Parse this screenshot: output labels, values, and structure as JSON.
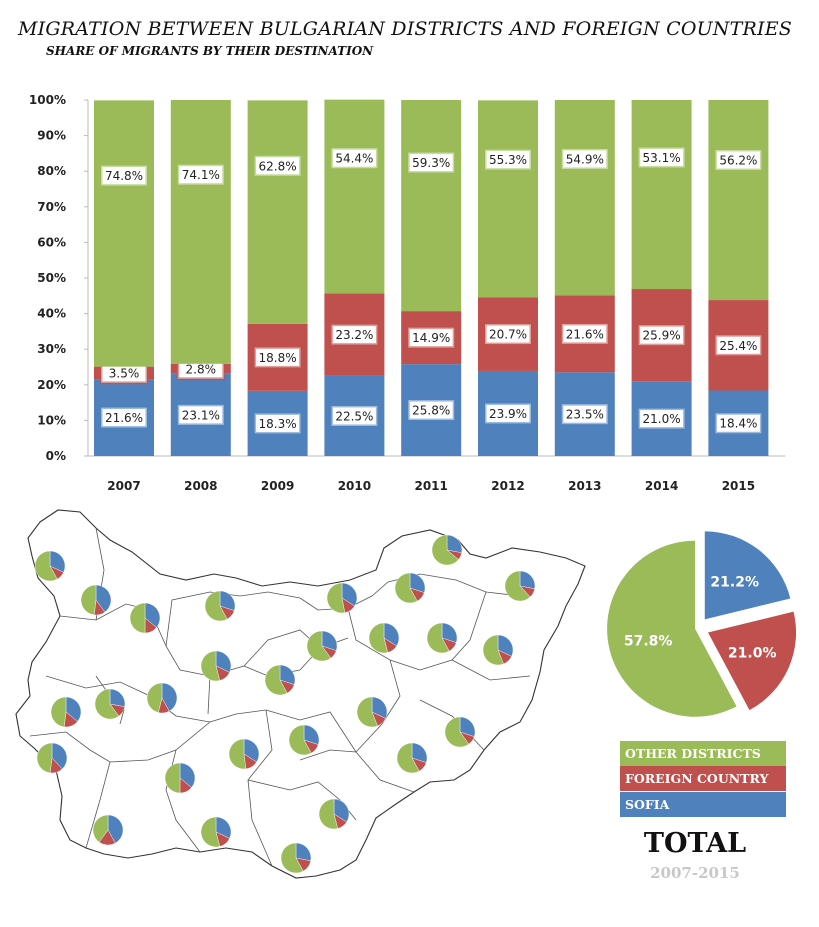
{
  "header": {
    "title": "MIGRATION BETWEEN BULGARIAN DISTRICTS AND FOREIGN COUNTRIES",
    "subtitle": "SHARE OF MIGRANTS BY THEIR DESTINATION"
  },
  "colors": {
    "other_districts": "#9bbb59",
    "foreign_country": "#c0504d",
    "sofia": "#4f81bd"
  },
  "chart_data": [
    {
      "type": "bar",
      "stacked": true,
      "categories": [
        "2007",
        "2008",
        "2009",
        "2010",
        "2011",
        "2012",
        "2013",
        "2014",
        "2015"
      ],
      "series": [
        {
          "name": "SOFIA",
          "values": [
            21.6,
            23.1,
            18.3,
            22.5,
            25.8,
            23.9,
            23.5,
            21.0,
            18.4
          ],
          "labels": [
            "21.6%",
            "23.1%",
            "18.3%",
            "22.5%",
            "25.8%",
            "23.9%",
            "23.5%",
            "21.0%",
            "18.4%"
          ]
        },
        {
          "name": "FOREIGN COUNTRY",
          "values": [
            3.5,
            2.8,
            18.8,
            23.2,
            14.9,
            20.7,
            21.6,
            25.9,
            25.4
          ],
          "labels": [
            "3.5%",
            "2.8%",
            "18.8%",
            "23.2%",
            "14.9%",
            "20.7%",
            "21.6%",
            "25.9%",
            "25.4%"
          ]
        },
        {
          "name": "OTHER DISTRICTS",
          "values": [
            74.8,
            74.1,
            62.8,
            54.4,
            59.3,
            55.3,
            54.9,
            53.1,
            56.2
          ],
          "labels": [
            "74.8%",
            "74.1%",
            "62.8%",
            "54.4%",
            "59.3%",
            "55.3%",
            "54.9%",
            "53.1%",
            "56.2%"
          ]
        }
      ],
      "yticks": [
        "0%",
        "10%",
        "20%",
        "30%",
        "40%",
        "50%",
        "60%",
        "70%",
        "80%",
        "90%",
        "100%"
      ],
      "ylim": [
        0,
        100
      ],
      "grid": false
    },
    {
      "type": "pie",
      "labels": [
        "SOFIA",
        "FOREIGN COUNTRY",
        "OTHER DISTRICTS"
      ],
      "values": [
        21.2,
        21.0,
        57.8
      ],
      "value_labels": [
        "21.2%",
        "21.0%",
        "57.8%"
      ],
      "exploded": true
    }
  ],
  "legend": {
    "items": [
      "OTHER DISTRICTS",
      "FOREIGN COUNTRY",
      "SOFIA"
    ]
  },
  "total": {
    "title": "TOTAL",
    "years": "2007-2015"
  }
}
